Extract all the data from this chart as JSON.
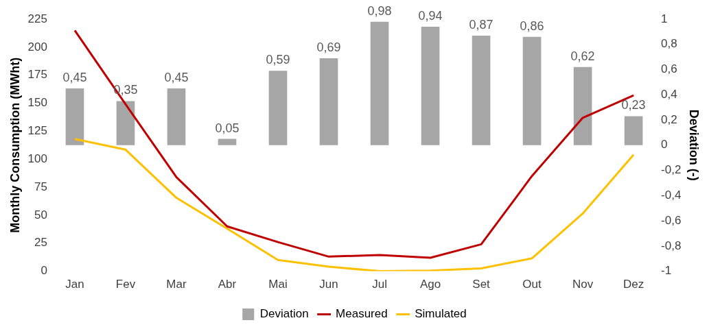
{
  "chart_data": {
    "type": "line",
    "categories": [
      "Jan",
      "Fev",
      "Mar",
      "Abr",
      "Mai",
      "Jun",
      "Jul",
      "Ago",
      "Set",
      "Out",
      "Nov",
      "Dez"
    ],
    "series": [
      {
        "name": "Deviation",
        "type": "bar",
        "axis": "y2",
        "color": "#a6a6a6",
        "values": [
          0.45,
          0.35,
          0.45,
          0.05,
          0.59,
          0.69,
          0.98,
          0.94,
          0.87,
          0.86,
          0.62,
          0.23
        ],
        "value_labels": [
          "0,45",
          "0,35",
          "0,45",
          "0,05",
          "0,59",
          "0,69",
          "0,98",
          "0,94",
          "0,87",
          "0,86",
          "0,62",
          "0,23"
        ]
      },
      {
        "name": "Measured",
        "color": "#c00000",
        "values": [
          215,
          149,
          84,
          40,
          26,
          13,
          14.5,
          12,
          24,
          85,
          137,
          157
        ]
      },
      {
        "name": "Simulated",
        "color": "#ffc000",
        "values": [
          118,
          108.5,
          65.5,
          38,
          10,
          4,
          0,
          0.5,
          2.5,
          11.5,
          51.5,
          104
        ]
      }
    ],
    "ylabel": "Monthly Consumption (MWht)",
    "y2label": "Deviation (-)",
    "ylim": [
      0,
      225
    ],
    "yticks": [
      0,
      25,
      50,
      75,
      100,
      125,
      150,
      175,
      200,
      225
    ],
    "y2lim": [
      -1,
      1
    ],
    "y2ticks": [
      -1,
      {
        "value": -0.8,
        "label": "-0,8"
      },
      {
        "value": -0.6,
        "label": "-0,6"
      },
      {
        "value": -0.4,
        "label": "-0,4"
      },
      {
        "value": -0.2,
        "label": "-0,2"
      },
      0,
      {
        "value": 0.2,
        "label": "0,2"
      },
      {
        "value": 0.4,
        "label": "0,4"
      },
      {
        "value": 0.6,
        "label": "0,6"
      },
      {
        "value": 0.8,
        "label": "0,8"
      },
      1
    ],
    "grid": false,
    "legend": "bottom",
    "marker": "none",
    "line_style": "solid"
  }
}
